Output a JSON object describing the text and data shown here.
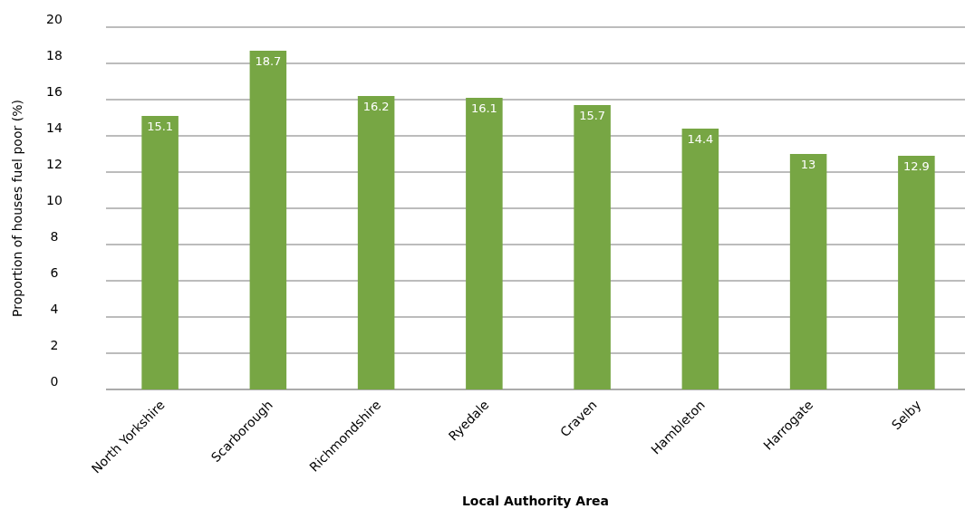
{
  "chart_data": {
    "type": "bar",
    "xlabel": "Local Authority Area",
    "ylabel": "Proportion of houses fuel poor (%)",
    "categories": [
      "North Yorkshire",
      "Scarborough",
      "Richmondshire",
      "Ryedale",
      "Craven",
      "Hambleton",
      "Harrogate",
      "Selby"
    ],
    "values": [
      15.1,
      18.7,
      16.2,
      16.1,
      15.7,
      14.4,
      13,
      12.9
    ],
    "color": "#77a644",
    "ylim": [
      0,
      20
    ],
    "yticks": [
      0,
      2,
      4,
      6,
      8,
      10,
      12,
      14,
      16,
      18,
      20
    ],
    "grid": true,
    "data_labels": true
  }
}
